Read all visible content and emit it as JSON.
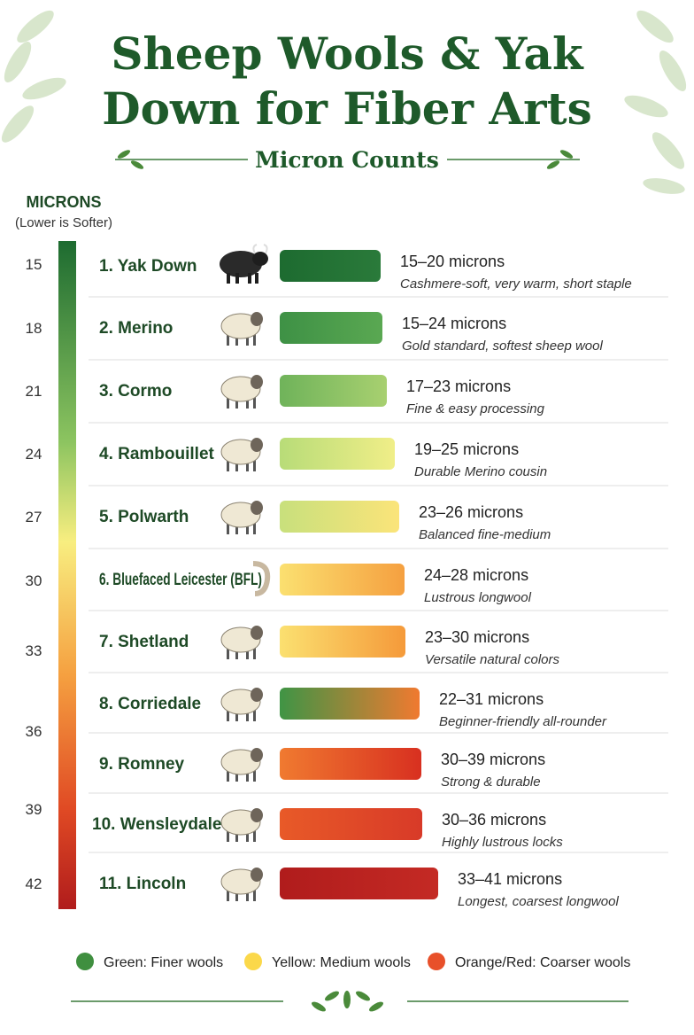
{
  "header": {
    "title_line1": "Sheep Wools & Yak",
    "title_line2": "Down for Fiber Arts",
    "subtitle": "Micron Counts"
  },
  "scale": {
    "label": "MICRONS",
    "note": "(Lower is Softer)",
    "ticks": [
      15,
      18,
      21,
      24,
      27,
      30,
      33,
      36,
      39,
      42
    ]
  },
  "items": [
    {
      "name": "1. Yak Down",
      "range": "15–20 microns",
      "description": "Cashmere-soft, very warm, short staple",
      "color": [
        "#1d6b30",
        "#2a7a3a"
      ]
    },
    {
      "name": "2. Merino",
      "range": "15–24 microns",
      "description": "Gold standard, softest sheep wool",
      "color": [
        "#3e9145",
        "#5aa852"
      ]
    },
    {
      "name": "3. Cormo",
      "range": "17–23 microns",
      "description": "Fine & easy processing",
      "color": [
        "#6fb35a",
        "#a8d070"
      ]
    },
    {
      "name": "4. Rambouillet",
      "range": "19–25 microns",
      "description": "Durable Merino cousin",
      "color": [
        "#b8dc78",
        "#f0ee88"
      ]
    },
    {
      "name": "5. Polwarth",
      "range": "23–26 microns",
      "description": "Balanced fine-medium",
      "color": [
        "#c8e07c",
        "#fbe47a"
      ]
    },
    {
      "name": "6. Bluefaced Leicester (BFL)",
      "range": "24–28 microns",
      "description": "Lustrous longwool",
      "color": [
        "#fbe070",
        "#f5a040"
      ]
    },
    {
      "name": "7. Shetland",
      "range": "23–30 microns",
      "description": "Versatile natural colors",
      "color": [
        "#fbe070",
        "#f59a3a"
      ]
    },
    {
      "name": "8. Corriedale",
      "range": "22–31 microns",
      "description": "Beginner-friendly all-rounder",
      "color": [
        "#3f9445",
        "#f07a30"
      ]
    },
    {
      "name": "9. Romney",
      "range": "30–39 microns",
      "description": "Strong & durable",
      "color": [
        "#f07a30",
        "#d83020"
      ]
    },
    {
      "name": "10. Wensleydale",
      "range": "30–36 microns",
      "description": "Highly lustrous locks",
      "color": [
        "#e85a28",
        "#d83a28"
      ]
    },
    {
      "name": "11. Lincoln",
      "range": "33–41 microns",
      "description": "Longest, coarsest longwool",
      "color": [
        "#b01c1c",
        "#c42a24"
      ]
    }
  ],
  "legend": [
    {
      "label": "Green: Finer wools",
      "color": "#3f8f3f"
    },
    {
      "label": "Yellow: Medium wools",
      "color": "#fbd84a"
    },
    {
      "label": "Orange/Red: Coarser wools",
      "color": "#e8502a"
    }
  ]
}
